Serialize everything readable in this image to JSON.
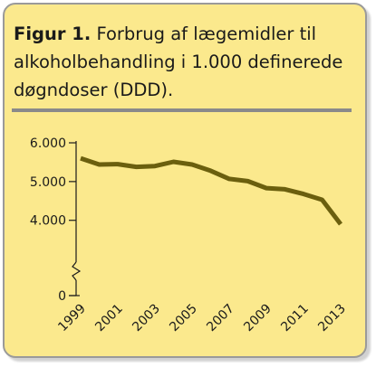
{
  "figure": {
    "label": "Figur 1.",
    "caption": "Forbrug af lægemidler til alkoholbehandling i 1.000 definerede døgndoser (DDD)."
  },
  "colors": {
    "background": "#fbe98d",
    "line": "#6b5f0e",
    "axis": "#1a1a1a",
    "rule": "#8a8a8a"
  },
  "chart_data": {
    "type": "line",
    "title": "Forbrug af lægemidler til alkoholbehandling i 1.000 definerede døgndoser (DDD).",
    "xlabel": "",
    "ylabel": "",
    "x": [
      1999,
      2000,
      2001,
      2002,
      2003,
      2004,
      2005,
      2006,
      2007,
      2008,
      2009,
      2010,
      2011,
      2012,
      2013
    ],
    "series": [
      {
        "values": [
          5600,
          5440,
          5450,
          5380,
          5400,
          5510,
          5440,
          5280,
          5070,
          5010,
          4830,
          4800,
          4680,
          4530,
          3900
        ]
      }
    ],
    "y_ticks": [
      0,
      4000,
      5000,
      6000
    ],
    "y_tick_labels": [
      "0",
      "4.000",
      "5.000",
      "6.000"
    ],
    "x_tick_labels": [
      "1999",
      "2001",
      "2003",
      "2005",
      "2007",
      "2009",
      "2011",
      "2013"
    ],
    "ylim": [
      3200,
      6000
    ],
    "axis_break": true,
    "grid": false,
    "legend": "none"
  }
}
